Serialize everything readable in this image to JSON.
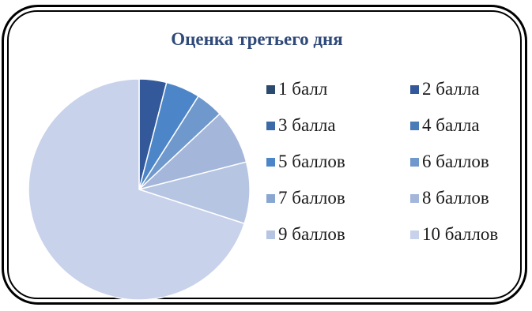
{
  "chart_data": {
    "type": "pie",
    "title": "Оценка третьего дня",
    "categories": [
      "1 балл",
      "2 балла",
      "3 балла",
      "4 балла",
      "5 баллов",
      "6 баллов",
      "7 баллов",
      "8 баллов",
      "9 баллов",
      "10 баллов"
    ],
    "values": [
      0,
      4,
      0,
      0,
      5,
      4,
      0,
      8,
      9,
      70
    ],
    "unit": "%",
    "colors": [
      "#2c4a6e",
      "#33599a",
      "#3c6aa8",
      "#4a7cb8",
      "#4d86c8",
      "#6f99cc",
      "#8aa7d2",
      "#a4b7db",
      "#b6c5e2",
      "#c8d2ea"
    ],
    "legend_position": "right",
    "start_angle_deg": 0,
    "direction": "clockwise"
  }
}
